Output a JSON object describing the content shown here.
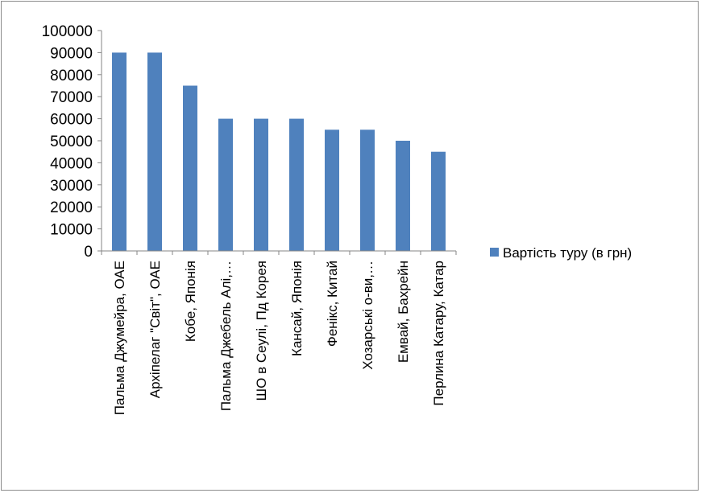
{
  "chart_data": {
    "type": "bar",
    "categories": [
      "Пальма Джумейра, ОАЕ",
      "Архіпелаг \"Світ\", ОАЕ",
      "Кобе, Японія",
      "Пальма Джебель Алі,…",
      "ШО в Сеулі, Пд Корея",
      "Кансай, Японія",
      "Фенікс, Китай",
      "Хозарські о-ви,…",
      "Емвай, Бахрейн",
      "Перлина Катару, Катар"
    ],
    "series": [
      {
        "name": "Вартість туру (в грн)",
        "values": [
          90000,
          90000,
          75000,
          60000,
          60000,
          60000,
          55000,
          55000,
          50000,
          45000
        ]
      }
    ],
    "ylim": [
      0,
      100000
    ],
    "y_ticks": [
      "0",
      "10000",
      "20000",
      "30000",
      "40000",
      "50000",
      "60000",
      "70000",
      "80000",
      "90000",
      "100000"
    ],
    "legend_position": "right",
    "colors": {
      "bar": "#4f81bd",
      "axis": "#868686",
      "frame": "#8c8c8c"
    }
  }
}
